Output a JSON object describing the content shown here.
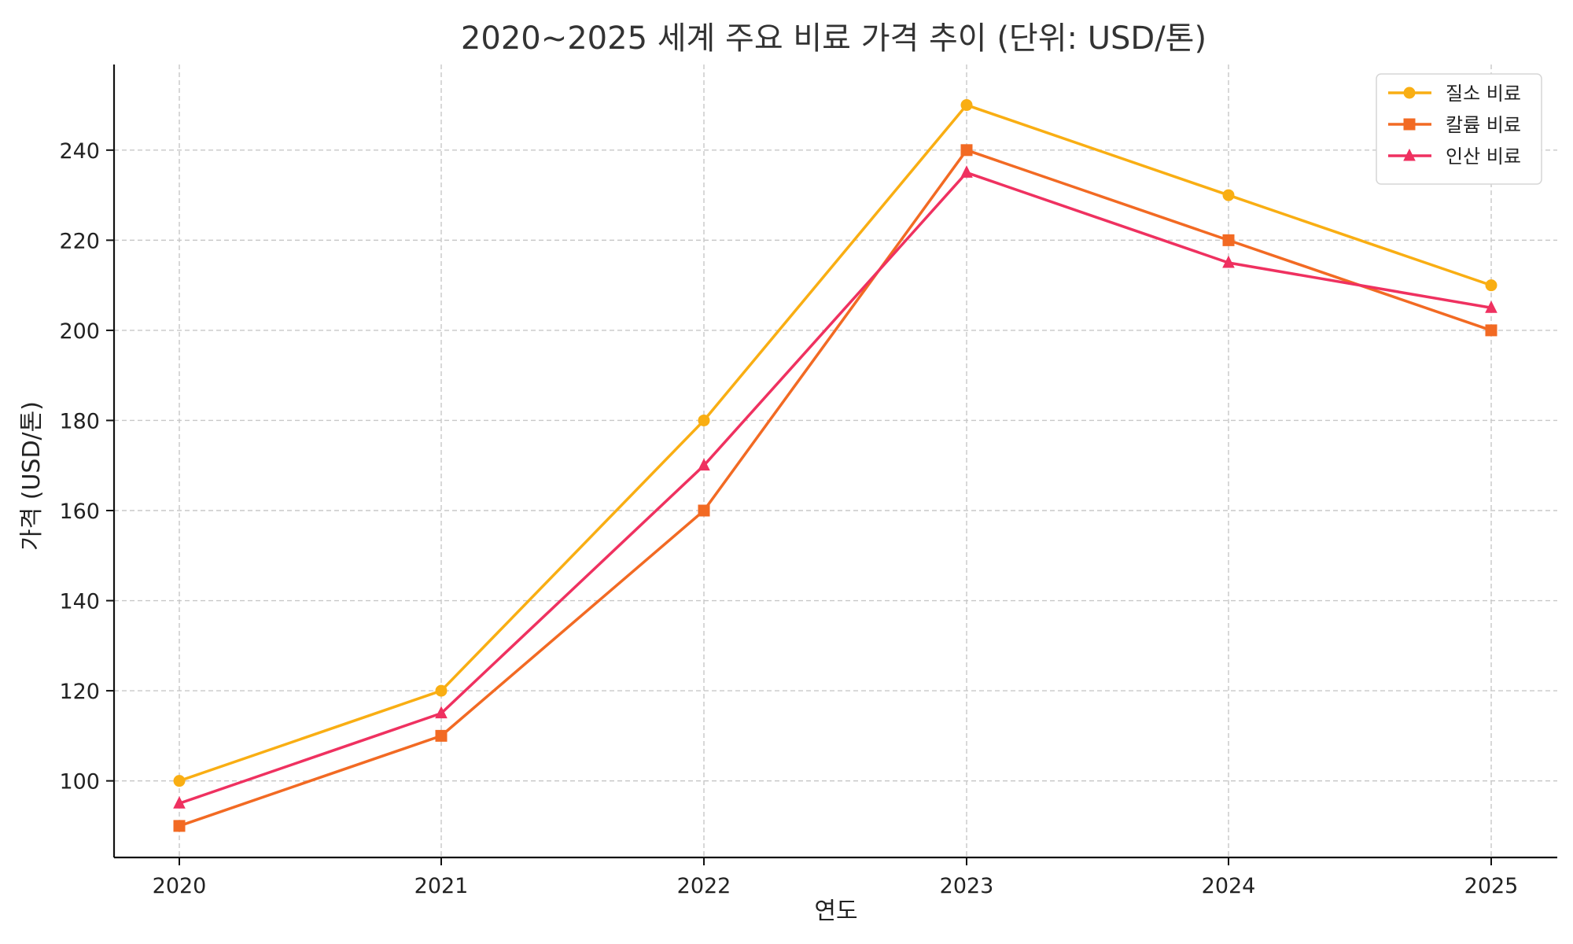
{
  "chart_data": {
    "type": "line",
    "title": "2020~2025 세계 주요 비료 가격 추이 (단위: USD/톤)",
    "xlabel": "연도",
    "ylabel": "가격 (USD/톤)",
    "x": [
      "2020",
      "2021",
      "2022",
      "2023",
      "2024",
      "2025"
    ],
    "series": [
      {
        "name": "질소 비료",
        "values": [
          100,
          120,
          180,
          250,
          230,
          210
        ],
        "color": "#F9AE13",
        "marker": "circle"
      },
      {
        "name": "칼륨 비료",
        "values": [
          90,
          110,
          160,
          240,
          220,
          200
        ],
        "color": "#F26A23",
        "marker": "square"
      },
      {
        "name": "인산 비료",
        "values": [
          95,
          115,
          170,
          235,
          215,
          205
        ],
        "color": "#EF3160",
        "marker": "triangle"
      }
    ],
    "ylim": [
      83,
      259
    ],
    "yticks": [
      100,
      120,
      140,
      160,
      180,
      200,
      220,
      240
    ],
    "grid": true,
    "legend_position": "top-right"
  }
}
